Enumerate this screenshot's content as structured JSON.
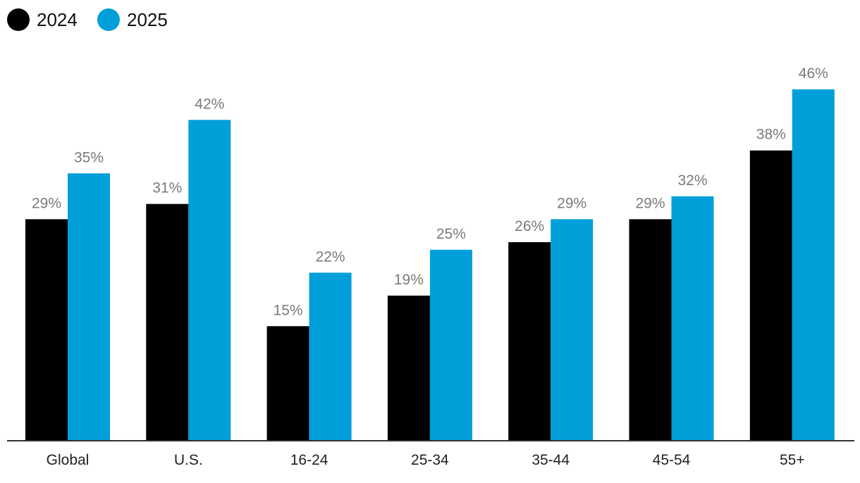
{
  "legend": {
    "position": "top-left",
    "items": [
      {
        "label": "2024",
        "color": "#000000"
      },
      {
        "label": "2025",
        "color": "#009fda"
      }
    ]
  },
  "chart_data": {
    "type": "bar",
    "categories": [
      "Global",
      "U.S.",
      "16-24",
      "25-34",
      "35-44",
      "45-54",
      "55+"
    ],
    "series": [
      {
        "name": "2024",
        "color": "#000000",
        "values": [
          29,
          31,
          15,
          19,
          26,
          29,
          38
        ],
        "labels": [
          "29%",
          "31%",
          "15%",
          "19%",
          "26%",
          "29%",
          "38%"
        ]
      },
      {
        "name": "2025",
        "color": "#009fda",
        "values": [
          35,
          42,
          22,
          25,
          29,
          32,
          46
        ],
        "labels": [
          "35%",
          "42%",
          "22%",
          "25%",
          "29%",
          "32%",
          "46%"
        ]
      }
    ],
    "ylim": [
      0,
      50
    ],
    "grid": false,
    "xlabel": "",
    "ylabel": ""
  }
}
